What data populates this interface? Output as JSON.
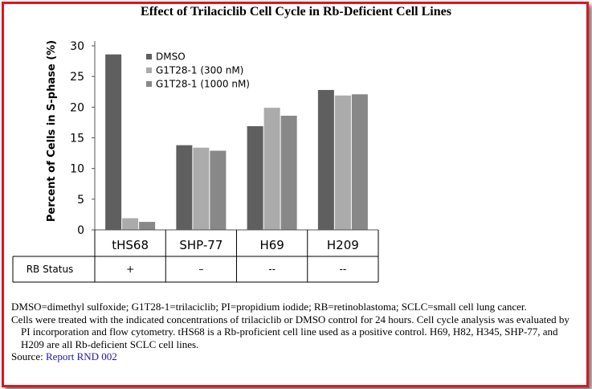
{
  "chart_data": {
    "type": "bar",
    "title": "Effect of Trilaciclib Cell Cycle in Rb-Deficient Cell Lines",
    "ylabel": "Percent of Cells in S-phase (%)",
    "xlabel": "",
    "ylim": [
      0,
      30
    ],
    "yticks": [
      0,
      5,
      10,
      15,
      20,
      25,
      30
    ],
    "categories": [
      "tHS68",
      "SHP-77",
      "H69",
      "H209"
    ],
    "series": [
      {
        "name": "DMSO",
        "color": "#5f5f5f",
        "values": [
          28.6,
          13.8,
          16.9,
          22.8
        ]
      },
      {
        "name": "G1T28-1 (300 nM)",
        "color": "#ababab",
        "values": [
          1.9,
          13.4,
          19.9,
          21.9
        ]
      },
      {
        "name": "G1T28-1 (1000 nM)",
        "color": "#888888",
        "values": [
          1.3,
          12.9,
          18.6,
          22.1
        ]
      }
    ],
    "legend": "top-left inside plot"
  },
  "rb_table": {
    "label": "RB Status",
    "values": [
      "+",
      "–",
      "--",
      "--"
    ]
  },
  "footnotes": {
    "abbrev": "DMSO=dimethyl sulfoxide; G1T28-1=trilaciclib; PI=propidium iodide; RB=retinoblastoma; SCLC=small cell lung cancer.",
    "method": "Cells were treated with the indicated concentrations of trilaciclib or DMSO control for 24 hours. Cell cycle analysis was evaluated by PI incorporation and flow cytometry. tHS68 is a Rb-proficient cell line used as a positive control. H69, H82, H345, SHP-77, and H209 are all Rb-deficient SCLC cell lines.",
    "source_label": "Source:",
    "source_link": "Report RND 002"
  },
  "colors": {
    "border": "#e0141b",
    "link": "#1a1aa8"
  }
}
